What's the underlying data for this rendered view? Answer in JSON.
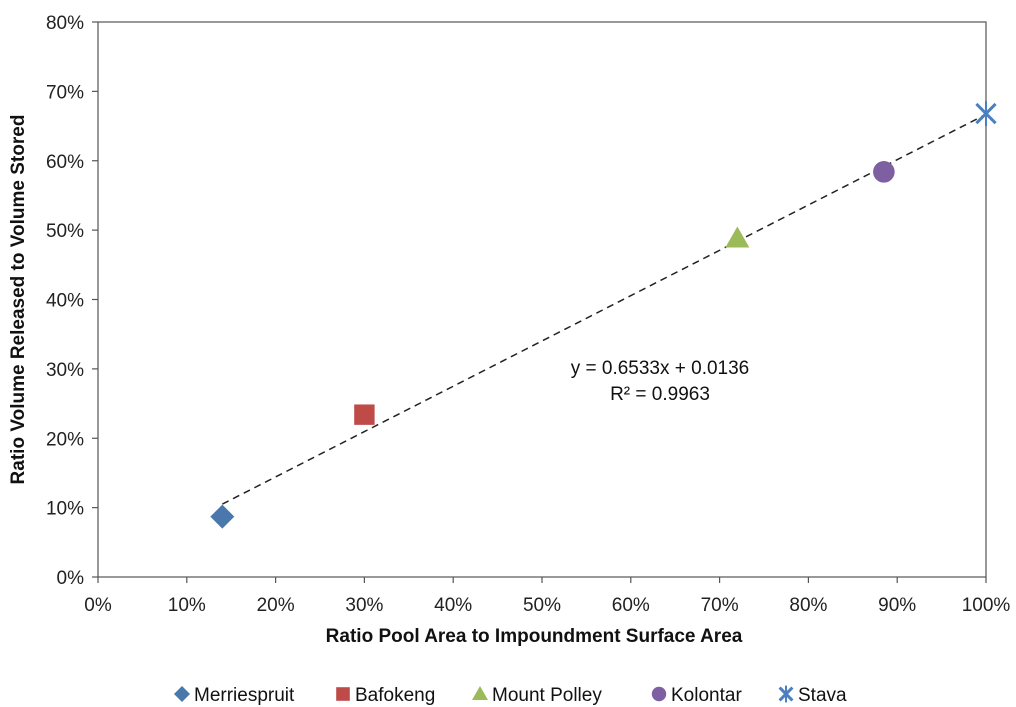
{
  "chart_data": {
    "type": "scatter",
    "xlabel": "Ratio Pool Area to Impoundment Surface Area",
    "ylabel": "Ratio Volume Released to Volume Stored",
    "xlim": [
      0,
      1
    ],
    "ylim": [
      0,
      0.8
    ],
    "x_ticks": [
      "0%",
      "10%",
      "20%",
      "30%",
      "40%",
      "50%",
      "60%",
      "70%",
      "80%",
      "90%",
      "100%"
    ],
    "y_ticks": [
      "0%",
      "10%",
      "20%",
      "30%",
      "40%",
      "50%",
      "60%",
      "70%",
      "80%"
    ],
    "grid": false,
    "legend_position": "bottom",
    "series": [
      {
        "name": "Merriespruit",
        "marker": "diamond",
        "color": "#4a78ad",
        "x": 0.14,
        "y": 0.087
      },
      {
        "name": "Bafokeng",
        "marker": "square",
        "color": "#be4b48",
        "x": 0.3,
        "y": 0.234
      },
      {
        "name": "Mount Polley",
        "marker": "triangle",
        "color": "#9bbb59",
        "x": 0.72,
        "y": 0.488
      },
      {
        "name": "Kolontar",
        "marker": "circle",
        "color": "#7e5fa2",
        "x": 0.885,
        "y": 0.584
      },
      {
        "name": "Stava",
        "marker": "asterisk-x",
        "color": "#4a7fc1",
        "x": 1.0,
        "y": 0.668
      }
    ],
    "trendline": {
      "style": "dashed",
      "slope": 0.6533,
      "intercept": 0.0136,
      "x_range": [
        0.14,
        1.0
      ],
      "equation": "y = 0.6533x + 0.0136",
      "r_squared": "R² = 0.9963"
    }
  }
}
